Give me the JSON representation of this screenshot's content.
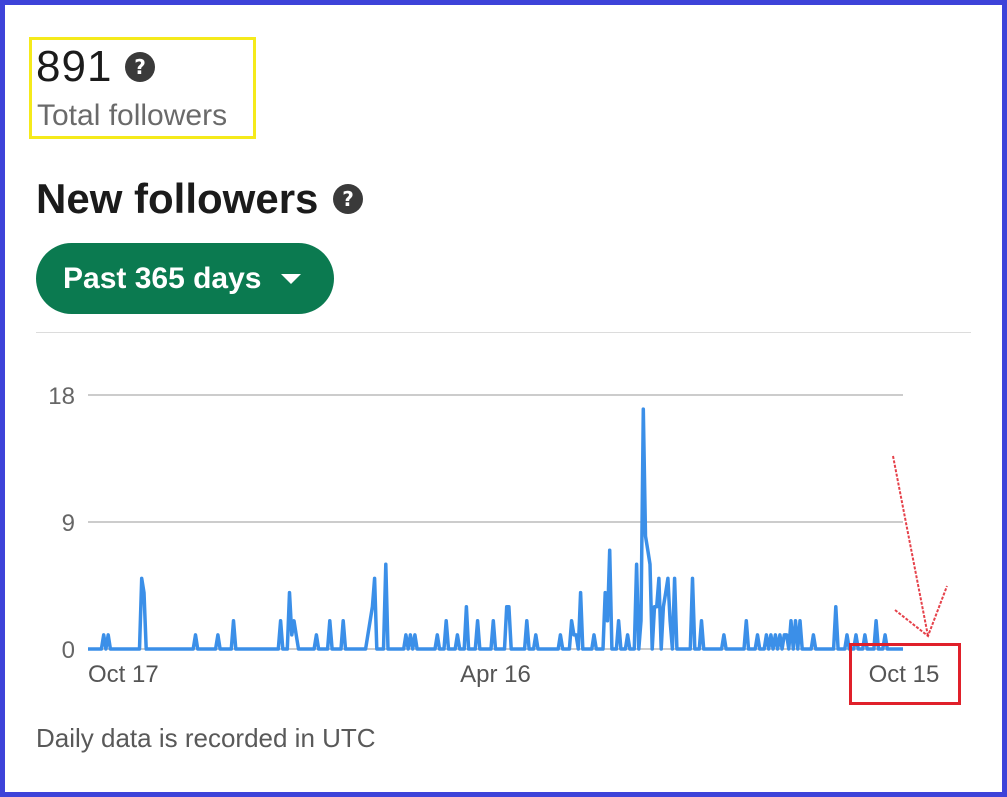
{
  "summary": {
    "total_value": "891",
    "total_label": "Total followers"
  },
  "section": {
    "title": "New followers"
  },
  "filter": {
    "range_label": "Past 365 days"
  },
  "footnote": "Daily data is recorded in UTC",
  "icons": {
    "help": "question-circle-icon",
    "dropdown": "caret-down-icon",
    "annotation": "red-arrow-icon"
  },
  "colors": {
    "accent": "#0b7a50",
    "line": "#3b8fe8",
    "frame": "#3d43d9",
    "highlight_yellow": "#f5ea1b",
    "highlight_red": "#e0202a"
  },
  "chart_data": {
    "type": "line",
    "title": "",
    "xlabel": "",
    "ylabel": "",
    "ylim": [
      0,
      18
    ],
    "y_ticks": [
      "18",
      "9",
      "0"
    ],
    "x_ticks": [
      {
        "label": "Oct 17",
        "index": 0
      },
      {
        "label": "Apr 16",
        "index": 182
      },
      {
        "label": "Oct 15",
        "index": 364
      }
    ],
    "grid": true,
    "series": [
      {
        "points": [
          [
            0,
            0
          ],
          [
            6,
            0
          ],
          [
            7,
            1
          ],
          [
            8,
            0
          ],
          [
            9,
            1
          ],
          [
            10,
            0
          ],
          [
            23,
            0
          ],
          [
            24,
            5
          ],
          [
            25,
            4
          ],
          [
            26,
            0
          ],
          [
            47,
            0
          ],
          [
            48,
            1
          ],
          [
            49,
            0
          ],
          [
            57,
            0
          ],
          [
            58,
            1
          ],
          [
            59,
            0
          ],
          [
            64,
            0
          ],
          [
            65,
            2
          ],
          [
            66,
            0
          ],
          [
            85,
            0
          ],
          [
            86,
            2
          ],
          [
            87,
            0
          ],
          [
            89,
            0
          ],
          [
            90,
            4
          ],
          [
            91,
            1
          ],
          [
            92,
            2
          ],
          [
            93,
            1
          ],
          [
            94,
            0
          ],
          [
            101,
            0
          ],
          [
            102,
            1
          ],
          [
            103,
            0
          ],
          [
            107,
            0
          ],
          [
            108,
            2
          ],
          [
            109,
            0
          ],
          [
            113,
            0
          ],
          [
            114,
            2
          ],
          [
            115,
            0
          ],
          [
            124,
            0
          ],
          [
            127,
            3
          ],
          [
            128,
            5
          ],
          [
            129,
            0
          ],
          [
            132,
            0
          ],
          [
            133,
            6
          ],
          [
            134,
            0
          ],
          [
            141,
            0
          ],
          [
            142,
            1
          ],
          [
            143,
            0
          ],
          [
            144,
            1
          ],
          [
            145,
            0
          ],
          [
            146,
            1
          ],
          [
            147,
            0
          ],
          [
            155,
            0
          ],
          [
            156,
            1
          ],
          [
            157,
            0
          ],
          [
            159,
            0
          ],
          [
            160,
            2
          ],
          [
            161,
            0
          ],
          [
            164,
            0
          ],
          [
            165,
            1
          ],
          [
            166,
            0
          ],
          [
            168,
            0
          ],
          [
            169,
            3
          ],
          [
            170,
            0
          ],
          [
            173,
            0
          ],
          [
            174,
            2
          ],
          [
            175,
            0
          ],
          [
            180,
            0
          ],
          [
            181,
            2
          ],
          [
            182,
            0
          ],
          [
            186,
            0
          ],
          [
            187,
            3
          ],
          [
            188,
            3
          ],
          [
            189,
            0
          ],
          [
            195,
            0
          ],
          [
            196,
            2
          ],
          [
            197,
            0
          ],
          [
            199,
            0
          ],
          [
            200,
            1
          ],
          [
            201,
            0
          ],
          [
            210,
            0
          ],
          [
            211,
            1
          ],
          [
            212,
            0
          ],
          [
            215,
            0
          ],
          [
            216,
            2
          ],
          [
            217,
            1
          ],
          [
            218,
            1
          ],
          [
            219,
            0
          ],
          [
            220,
            4
          ],
          [
            221,
            0
          ],
          [
            225,
            0
          ],
          [
            226,
            1
          ],
          [
            227,
            0
          ],
          [
            230,
            0
          ],
          [
            231,
            4
          ],
          [
            232,
            2
          ],
          [
            233,
            7
          ],
          [
            234,
            0
          ],
          [
            236,
            0
          ],
          [
            237,
            2
          ],
          [
            238,
            0
          ],
          [
            240,
            0
          ],
          [
            241,
            1
          ],
          [
            242,
            0
          ],
          [
            244,
            0
          ],
          [
            245,
            6
          ],
          [
            246,
            0
          ],
          [
            247,
            2
          ],
          [
            248,
            17
          ],
          [
            249,
            8
          ],
          [
            250,
            7
          ],
          [
            251,
            6
          ],
          [
            252,
            0
          ],
          [
            253,
            3
          ],
          [
            254,
            3
          ],
          [
            255,
            5
          ],
          [
            256,
            0
          ],
          [
            257,
            3
          ],
          [
            258,
            4
          ],
          [
            259,
            5
          ],
          [
            260,
            2
          ],
          [
            261,
            0
          ],
          [
            262,
            5
          ],
          [
            263,
            0
          ],
          [
            269,
            0
          ],
          [
            270,
            5
          ],
          [
            271,
            0
          ],
          [
            273,
            0
          ],
          [
            274,
            2
          ],
          [
            275,
            0
          ],
          [
            283,
            0
          ],
          [
            284,
            1
          ],
          [
            285,
            0
          ],
          [
            293,
            0
          ],
          [
            294,
            2
          ],
          [
            295,
            0
          ],
          [
            298,
            0
          ],
          [
            299,
            1
          ],
          [
            300,
            0
          ],
          [
            302,
            0
          ],
          [
            303,
            1
          ],
          [
            304,
            0
          ],
          [
            305,
            1
          ],
          [
            306,
            0
          ],
          [
            307,
            1
          ],
          [
            308,
            0
          ],
          [
            309,
            1
          ],
          [
            310,
            0
          ],
          [
            311,
            1
          ],
          [
            312,
            1
          ],
          [
            313,
            0
          ],
          [
            314,
            2
          ],
          [
            315,
            0
          ],
          [
            316,
            2
          ],
          [
            317,
            0
          ],
          [
            318,
            2
          ],
          [
            319,
            0
          ],
          [
            323,
            0
          ],
          [
            324,
            1
          ],
          [
            325,
            0
          ],
          [
            333,
            0
          ],
          [
            334,
            3
          ],
          [
            335,
            0
          ],
          [
            338,
            0
          ],
          [
            339,
            1
          ],
          [
            340,
            0
          ],
          [
            342,
            0
          ],
          [
            343,
            1
          ],
          [
            344,
            0
          ],
          [
            346,
            0
          ],
          [
            347,
            1
          ],
          [
            348,
            0
          ],
          [
            351,
            0
          ],
          [
            352,
            2
          ],
          [
            353,
            0
          ],
          [
            355,
            0
          ],
          [
            356,
            1
          ],
          [
            357,
            0
          ],
          [
            364,
            0
          ]
        ]
      }
    ]
  }
}
